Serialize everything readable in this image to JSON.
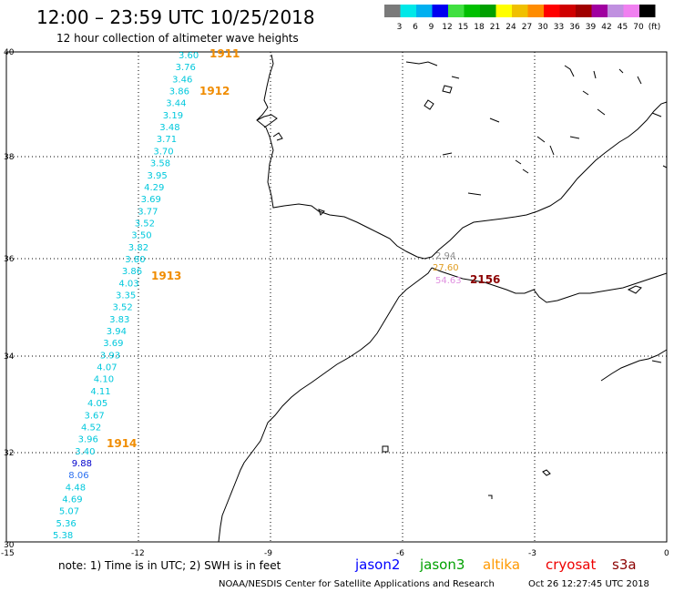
{
  "header": {
    "title": "12:00 – 23:59 UTC 10/25/2018",
    "subtitle": "12 hour collection of altimeter wave heights"
  },
  "colorbar": {
    "colors": [
      "#7a7a7a",
      "#00e8e8",
      "#00b0f0",
      "#0000f0",
      "#40e040",
      "#00c000",
      "#00a000",
      "#ffff00",
      "#f0c000",
      "#ff8c00",
      "#ff0000",
      "#d00000",
      "#a00000",
      "#a000a0",
      "#c090e0",
      "#f080f0",
      "#000000"
    ],
    "labels": [
      "3",
      "6",
      "9",
      "12",
      "15",
      "18",
      "21",
      "24",
      "27",
      "30",
      "33",
      "36",
      "39",
      "42",
      "45",
      "70",
      "(ft)"
    ]
  },
  "axes": {
    "lat_labels": [
      "40",
      "38",
      "36",
      "34",
      "32",
      "30"
    ],
    "lon_labels": [
      "-15",
      "-12",
      "-9",
      "-6",
      "-3",
      "0"
    ]
  },
  "track": {
    "color": "#00c8dc",
    "values": [
      "3.60",
      "3.76",
      "3.46",
      "3.86",
      "3.44",
      "3.19",
      "3.48",
      "3.71",
      "3.70",
      "3.58",
      "3.95",
      "4.29",
      "3.69",
      "3.77",
      "3.52",
      "3.50",
      "3.82",
      "3.80",
      "3.86",
      "4.03",
      "3.35",
      "3.52",
      "3.83",
      "3.94",
      "3.69",
      "3.93",
      "4.07",
      "4.10",
      "4.11",
      "4.05",
      "3.67",
      "4.52",
      "3.96",
      "3.40",
      "9.88",
      "8.06",
      "4.48",
      "4.69",
      "5.07",
      "5.36",
      "5.38"
    ],
    "special": {
      "34": "#0000cc",
      "35": "#2a6ff0"
    }
  },
  "times": {
    "color": "#f08c00",
    "labels": [
      "1911",
      "1912",
      "1913",
      "1914"
    ]
  },
  "gibraltar": {
    "v1": "2.94",
    "v1_color": "#8c8c8c",
    "v2": "27.60",
    "v2_color": "#e09c20",
    "v3": "54.63",
    "v3_color": "#e090e0",
    "time": "2156",
    "time_color": "#8b0000"
  },
  "footer": {
    "note": "note:  1) Time is in UTC; 2) SWH is in feet",
    "legend": [
      {
        "name": "jason2",
        "color": "#0000ff"
      },
      {
        "name": "jason3",
        "color": "#00a000"
      },
      {
        "name": "altika",
        "color": "#ff9900"
      },
      {
        "name": "cryosat",
        "color": "#ee0000"
      },
      {
        "name": "s3a",
        "color": "#8b0000"
      }
    ],
    "credit": "NOAA/NESDIS Center for Satellite Applications and Research",
    "timestamp": "Oct 26 12:27:45 UTC 2018"
  }
}
